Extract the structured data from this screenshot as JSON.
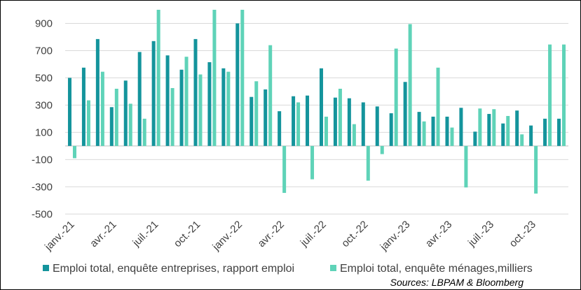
{
  "chart_data": {
    "type": "bar",
    "categories": [
      "janv.-21",
      "févr.-21",
      "mars-21",
      "avr.-21",
      "mai-21",
      "juin-21",
      "juil.-21",
      "août-21",
      "sept.-21",
      "oct.-21",
      "nov.-21",
      "déc.-21",
      "janv.-22",
      "févr.-22",
      "mars-22",
      "avr.-22",
      "mai-22",
      "juin-22",
      "juil.-22",
      "août-22",
      "sept.-22",
      "oct.-22",
      "nov.-22",
      "déc.-22",
      "janv.-23",
      "févr.-23",
      "mars-23",
      "avr.-23",
      "mai-23",
      "juin-23",
      "juil.-23",
      "août-23",
      "sept.-23",
      "oct.-23",
      "nov.-23",
      "déc.-23"
    ],
    "x_tick_labels": [
      "janv.-21",
      "avr.-21",
      "juil.-21",
      "oct.-21",
      "janv.-22",
      "avr.-22",
      "juil.-22",
      "oct.-22",
      "janv.-23",
      "avr.-23",
      "juil.-23",
      "oct.-23"
    ],
    "series": [
      {
        "name": "Emploi total, enquête entreprises, rapport emploi",
        "color": "#14949c",
        "values": [
          500,
          575,
          785,
          285,
          480,
          690,
          770,
          665,
          560,
          785,
          615,
          570,
          900,
          360,
          415,
          255,
          365,
          370,
          570,
          355,
          350,
          320,
          290,
          240,
          470,
          250,
          215,
          215,
          280,
          105,
          235,
          165,
          260,
          150,
          200,
          200
        ]
      },
      {
        "name": "Emploi total, enquête ménages,milliers",
        "color": "#5fd3b8",
        "values": [
          -90,
          335,
          545,
          420,
          310,
          200,
          1000,
          425,
          655,
          525,
          1000,
          545,
          1000,
          475,
          740,
          -345,
          320,
          -245,
          215,
          420,
          160,
          -255,
          -60,
          715,
          895,
          180,
          575,
          135,
          -305,
          275,
          270,
          220,
          85,
          -350,
          745,
          745
        ]
      }
    ],
    "y_ticks": [
      -500,
      -300,
      -100,
      100,
      300,
      500,
      700,
      900
    ],
    "ylim": [
      -550,
      1000
    ],
    "legend": "bottom",
    "source": "Sources: LBPAM & Bloomberg"
  }
}
